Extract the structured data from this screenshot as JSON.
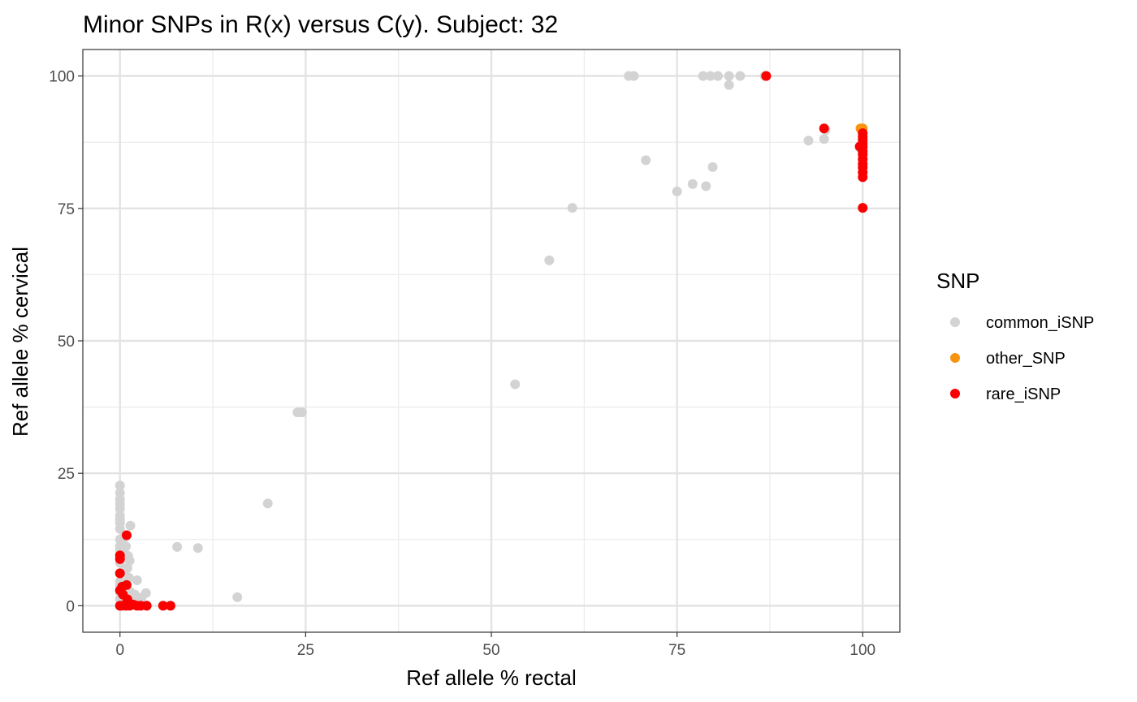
{
  "chart_data": {
    "type": "scatter",
    "title": "Minor SNPs in R(x) versus C(y). Subject: 32",
    "xlabel": "Ref allele % rectal",
    "ylabel": "Ref allele % cervical",
    "xlim": [
      -5,
      105
    ],
    "ylim": [
      -5,
      105
    ],
    "x_ticks": [
      0,
      25,
      50,
      75,
      100
    ],
    "y_ticks": [
      0,
      25,
      50,
      75,
      100
    ],
    "grid": true,
    "legend": {
      "title": "SNP",
      "position": "right"
    },
    "series": [
      {
        "name": "common_iSNP",
        "color": "#d3d3d3",
        "points": [
          [
            68.5,
            100
          ],
          [
            69.2,
            100
          ],
          [
            78.5,
            100
          ],
          [
            79.5,
            100
          ],
          [
            80.5,
            100
          ],
          [
            82,
            100
          ],
          [
            83.5,
            100
          ],
          [
            86.8,
            100
          ],
          [
            82,
            98.3
          ],
          [
            92.7,
            87.8
          ],
          [
            94.8,
            88.1
          ],
          [
            95,
            89.8
          ],
          [
            99.6,
            86.5
          ],
          [
            70.8,
            84.1
          ],
          [
            79.8,
            82.8
          ],
          [
            77.1,
            79.6
          ],
          [
            78.9,
            79.2
          ],
          [
            75,
            78.2
          ],
          [
            60.9,
            75.1
          ],
          [
            57.8,
            65.2
          ],
          [
            53.2,
            41.8
          ],
          [
            23.9,
            36.5
          ],
          [
            24.5,
            36.5
          ],
          [
            19.9,
            19.3
          ],
          [
            15.8,
            1.6
          ],
          [
            7.7,
            11.1
          ],
          [
            10.5,
            10.9
          ],
          [
            0,
            22.7
          ],
          [
            0,
            21.3
          ],
          [
            0,
            20.1
          ],
          [
            0,
            19.2
          ],
          [
            0,
            18.3
          ],
          [
            0,
            17
          ],
          [
            0,
            16.2
          ],
          [
            0,
            15.6
          ],
          [
            0,
            14.5
          ],
          [
            0,
            12.5
          ],
          [
            0,
            11.2
          ],
          [
            0,
            10.5
          ],
          [
            0,
            9.6
          ],
          [
            0,
            8.1
          ],
          [
            0,
            6.2
          ],
          [
            0,
            4.6
          ],
          [
            0,
            3.8
          ],
          [
            0,
            2.5
          ],
          [
            0,
            1.2
          ],
          [
            0,
            0
          ],
          [
            0.5,
            12.8
          ],
          [
            0.6,
            10.8
          ],
          [
            0.8,
            11.2
          ],
          [
            1.1,
            9.4
          ],
          [
            1.3,
            8.5
          ],
          [
            1.0,
            7.1
          ],
          [
            0.6,
            6.6
          ],
          [
            1.2,
            5.3
          ],
          [
            0.3,
            4.2
          ],
          [
            0.8,
            3.2
          ],
          [
            1.4,
            2.6
          ],
          [
            0.9,
            1.9
          ],
          [
            0.4,
            1.1
          ],
          [
            1.4,
            15.1
          ],
          [
            1.7,
            1.8
          ],
          [
            2.1,
            1.2
          ],
          [
            2.5,
            0.6
          ],
          [
            2.3,
            4.8
          ],
          [
            2.9,
            1.5
          ],
          [
            3.5,
            2.4
          ],
          [
            1.6,
            0.5
          ],
          [
            1.9,
            0.2
          ],
          [
            0.7,
            0.3
          ],
          [
            2.0,
            2.1
          ],
          [
            2.6,
            0
          ]
        ]
      },
      {
        "name": "other_SNP",
        "color": "#f8940e",
        "points": [
          [
            99.7,
            90.1
          ],
          [
            100,
            90.1
          ]
        ]
      },
      {
        "name": "rare_iSNP",
        "color": "#fa0000",
        "points": [
          [
            87,
            100
          ],
          [
            94.8,
            90.1
          ],
          [
            100,
            89.2
          ],
          [
            100,
            88.5
          ],
          [
            100,
            87.9
          ],
          [
            100,
            87.2
          ],
          [
            100,
            86.6
          ],
          [
            99.6,
            86.7
          ],
          [
            100,
            85.8
          ],
          [
            100,
            85.2
          ],
          [
            100,
            84.3
          ],
          [
            100,
            83.4
          ],
          [
            100,
            82.7
          ],
          [
            100,
            81.8
          ],
          [
            100,
            80.9
          ],
          [
            100,
            75.1
          ],
          [
            0.9,
            13.3
          ],
          [
            0,
            9.5
          ],
          [
            0,
            8.8
          ],
          [
            0,
            6.1
          ],
          [
            0.3,
            3.6
          ],
          [
            0.9,
            3.9
          ],
          [
            0,
            2.9
          ],
          [
            0.4,
            2.1
          ],
          [
            1.0,
            1.2
          ],
          [
            0,
            0
          ],
          [
            0.2,
            0
          ],
          [
            0.8,
            0
          ],
          [
            1.3,
            0
          ],
          [
            1.8,
            0.2
          ],
          [
            2.3,
            0
          ],
          [
            2.8,
            0
          ],
          [
            3.6,
            0
          ],
          [
            5.8,
            0
          ],
          [
            6.8,
            0
          ]
        ]
      }
    ]
  }
}
